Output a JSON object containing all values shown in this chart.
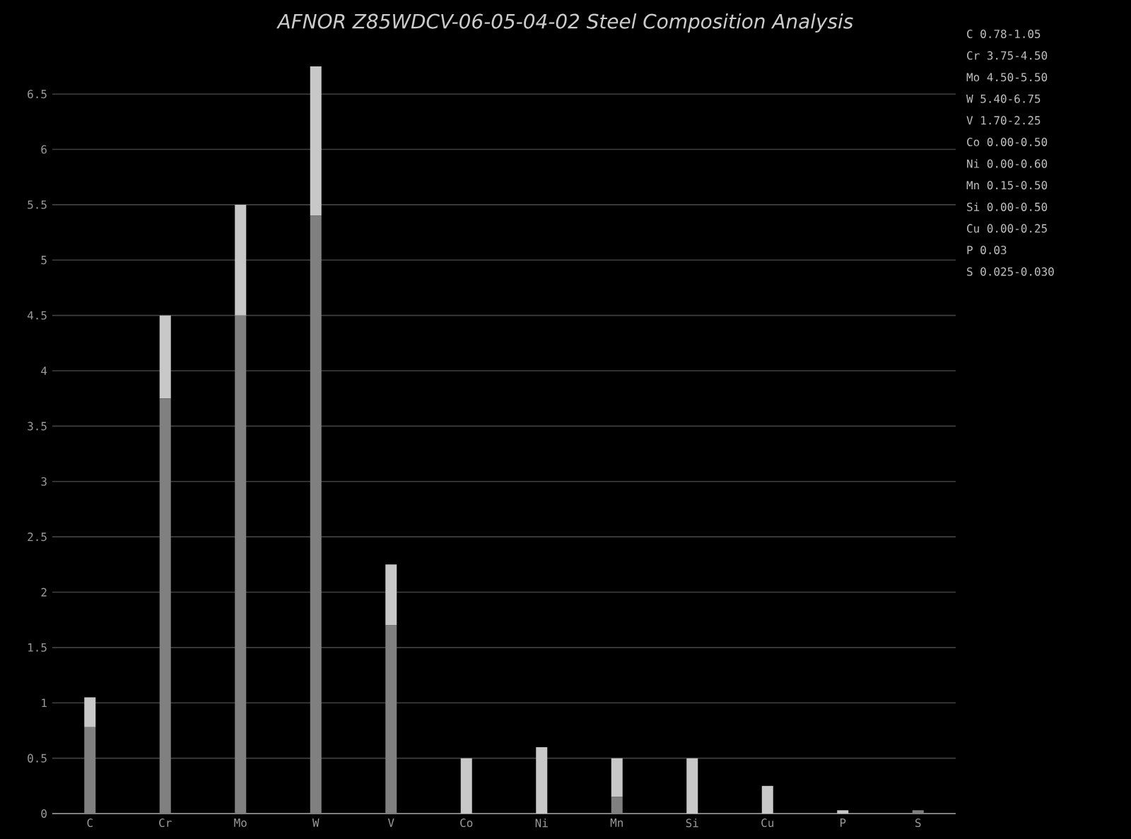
{
  "chart_data": {
    "type": "bar",
    "title": "AFNOR Z85WDCV-06-05-04-02 Steel Composition Analysis",
    "categories": [
      "C",
      "Cr",
      "Mo",
      "W",
      "V",
      "Co",
      "Ni",
      "Mn",
      "Si",
      "Cu",
      "P",
      "S"
    ],
    "stacked": true,
    "series": [
      {
        "color": "#808080",
        "values": [
          0.78,
          3.75,
          4.5,
          5.4,
          1.7,
          0,
          0,
          0.15,
          0,
          0,
          0,
          0.03
        ]
      },
      {
        "color": "#c8c8c8",
        "values": [
          0.27,
          0.75,
          1.0,
          1.35,
          0.55,
          0.5,
          0.6,
          0.35,
          0.5,
          0.25,
          0.03,
          null
        ]
      }
    ],
    "ylim": [
      0,
      6.75
    ],
    "yticks": [
      0,
      0.5,
      1,
      1.5,
      2,
      2.5,
      3,
      3.5,
      4,
      4.5,
      5,
      5.5,
      6,
      6.5
    ],
    "grid": "y",
    "annotations": [
      "C  0.78-1.05",
      "Cr 3.75-4.50",
      "Mo 4.50-5.50",
      "W  5.40-6.75",
      "V  1.70-2.25",
      "Co 0.00-0.50",
      "Ni 0.00-0.60",
      "Mn 0.15-0.50",
      "Si 0.00-0.50",
      "Cu 0.00-0.25",
      "P  0.03",
      "S  0.025-0.030"
    ]
  }
}
